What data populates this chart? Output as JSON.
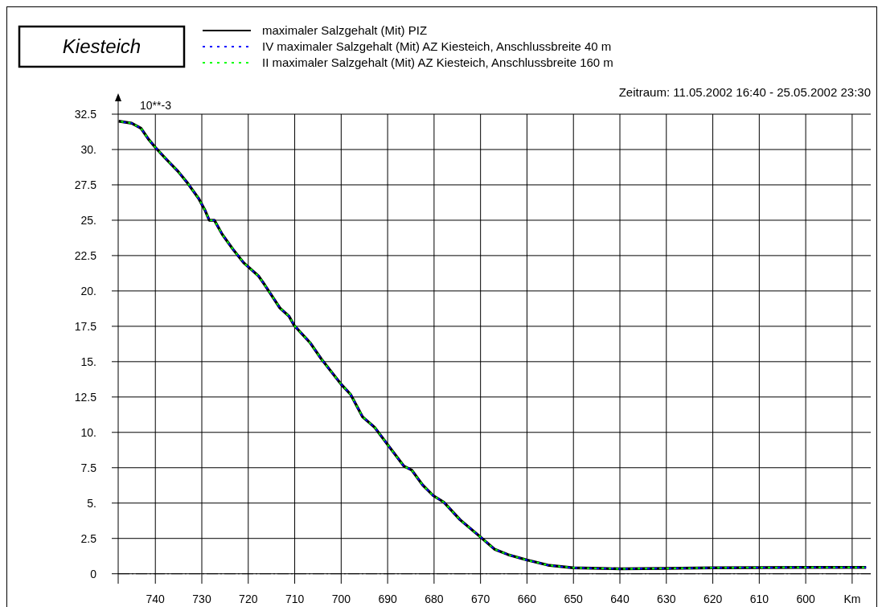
{
  "chart_data": {
    "type": "line",
    "title": "Kiesteich",
    "subtitle": "Zeitraum: 11.05.2002 16:40 - 25.05.2002 23:30",
    "annotations": [
      "10**-3"
    ],
    "x": [
      747.9,
      745.1,
      743.1,
      741.4,
      740,
      737.6,
      735.1,
      733,
      730.7,
      729.3,
      728.4,
      727.3,
      725.6,
      723.3,
      721,
      717.8,
      716.4,
      713.2,
      711.2,
      710.1,
      706.6,
      704.3,
      700,
      698,
      695.4,
      692.8,
      690,
      686.5,
      684.8,
      682.5,
      680.2,
      677.9,
      674.4,
      670,
      667,
      664.1,
      660.1,
      655.5,
      650.1,
      644,
      640,
      630,
      620,
      610,
      600,
      587
    ],
    "series": [
      {
        "name": "maximaler Salzgehalt (Mit) PIZ",
        "color": "#000000",
        "line_style": "solid",
        "values": [
          32.0,
          31.86,
          31.5,
          30.7,
          30.15,
          29.3,
          28.45,
          27.6,
          26.55,
          25.7,
          25.0,
          25.0,
          24.0,
          22.95,
          22.0,
          21.06,
          20.4,
          18.8,
          18.2,
          17.56,
          16.3,
          15.2,
          13.4,
          12.7,
          11.1,
          10.36,
          9.13,
          7.61,
          7.33,
          6.29,
          5.53,
          5.06,
          3.82,
          2.6,
          1.74,
          1.36,
          0.98,
          0.61,
          0.42,
          0.38,
          0.35,
          0.38,
          0.42,
          0.44,
          0.45,
          0.45
        ]
      },
      {
        "name": "IV maximaler Salzgehalt (Mit) AZ Kiesteich, Anschlussbreite 40 m",
        "color": "#0000ff",
        "line_style": "dashed",
        "values": [
          32.0,
          31.86,
          31.5,
          30.7,
          30.15,
          29.3,
          28.45,
          27.6,
          26.55,
          25.7,
          25.0,
          25.0,
          24.0,
          22.95,
          22.0,
          21.06,
          20.4,
          18.8,
          18.2,
          17.56,
          16.3,
          15.2,
          13.4,
          12.7,
          11.1,
          10.36,
          9.13,
          7.61,
          7.33,
          6.29,
          5.53,
          5.06,
          3.82,
          2.6,
          1.74,
          1.36,
          0.98,
          0.61,
          0.42,
          0.38,
          0.35,
          0.38,
          0.42,
          0.44,
          0.45,
          0.45
        ]
      },
      {
        "name": "II maximaler Salzgehalt (Mit) AZ Kiesteich, Anschlussbreite 160 m",
        "color": "#00ff00",
        "line_style": "dashed",
        "values": [
          32.0,
          31.86,
          31.5,
          30.7,
          30.15,
          29.3,
          28.45,
          27.6,
          26.55,
          25.7,
          25.0,
          25.0,
          24.0,
          22.95,
          22.0,
          21.06,
          20.4,
          18.8,
          18.2,
          17.56,
          16.3,
          15.2,
          13.4,
          12.7,
          11.1,
          10.36,
          9.13,
          7.61,
          7.33,
          6.29,
          5.53,
          5.06,
          3.82,
          2.6,
          1.74,
          1.36,
          0.98,
          0.61,
          0.42,
          0.38,
          0.35,
          0.38,
          0.42,
          0.44,
          0.45,
          0.45
        ]
      }
    ],
    "xlim": [
      748,
      586
    ],
    "xticks": [
      740,
      730,
      720,
      710,
      700,
      690,
      680,
      670,
      660,
      650,
      640,
      630,
      620,
      610,
      600,
      {
        "value": 590,
        "label": "Km"
      }
    ],
    "ylim": [
      -0.7,
      32.5
    ],
    "yticks": [
      {
        "value": 0,
        "label": "0"
      },
      2.5,
      {
        "value": 5,
        "label": "5."
      },
      7.5,
      {
        "value": 10,
        "label": "10."
      },
      12.5,
      {
        "value": 15,
        "label": "15."
      },
      17.5,
      {
        "value": 20,
        "label": "20."
      },
      22.5,
      {
        "value": 25,
        "label": "25."
      },
      27.5,
      {
        "value": 30,
        "label": "30."
      },
      32.5
    ],
    "ref_lines": [
      {
        "axis": "y",
        "value": 0,
        "color": "#000000",
        "line_style": "dashed"
      }
    ],
    "grid": true,
    "legend": "top"
  }
}
